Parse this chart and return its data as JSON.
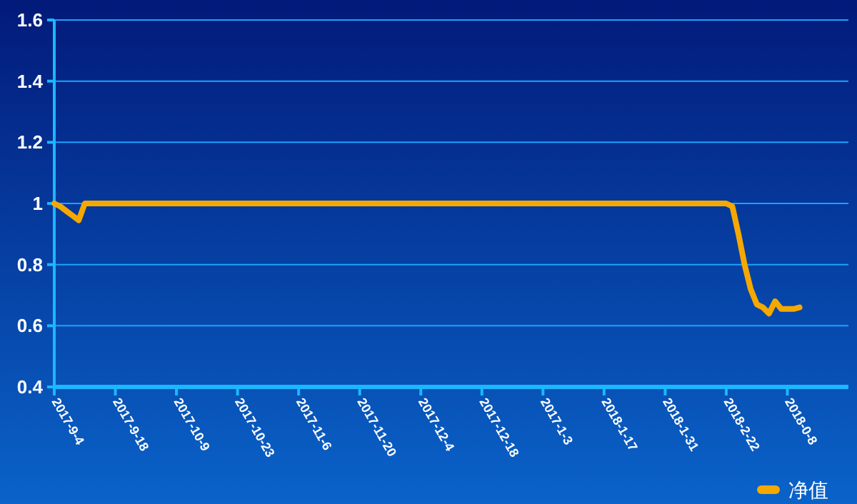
{
  "chart_data": {
    "type": "line",
    "categories": [
      "2017-9-4",
      null,
      null,
      null,
      null,
      null,
      null,
      null,
      null,
      null,
      "2017-9-18",
      null,
      null,
      null,
      null,
      null,
      null,
      null,
      null,
      null,
      "2017-10-9",
      null,
      null,
      null,
      null,
      null,
      null,
      null,
      null,
      null,
      "2017-10-23",
      null,
      null,
      null,
      null,
      null,
      null,
      null,
      null,
      null,
      "2017-11-6",
      null,
      null,
      null,
      null,
      null,
      null,
      null,
      null,
      null,
      "2017-11-20",
      null,
      null,
      null,
      null,
      null,
      null,
      null,
      null,
      null,
      "2017-12-4",
      null,
      null,
      null,
      null,
      null,
      null,
      null,
      null,
      null,
      "2017-12-18",
      null,
      null,
      null,
      null,
      null,
      null,
      null,
      null,
      null,
      "2017-1-3",
      null,
      null,
      null,
      null,
      null,
      null,
      null,
      null,
      null,
      "2018-1-17",
      null,
      null,
      null,
      null,
      null,
      null,
      null,
      null,
      null,
      "2018-1-31",
      null,
      null,
      null,
      null,
      null,
      null,
      null,
      null,
      null,
      "2018-2-22",
      null,
      null,
      null,
      null,
      null,
      null,
      null,
      null,
      null,
      "2018-0-8",
      null,
      null,
      null,
      null,
      null,
      null,
      null,
      null,
      null,
      null
    ],
    "series": [
      {
        "name": "净值",
        "color": "#f5a800",
        "values": [
          1,
          0.99,
          0.975,
          0.96,
          0.945,
          1,
          1,
          1,
          1,
          1,
          1,
          1,
          1,
          1,
          1,
          1,
          1,
          1,
          1,
          1,
          1,
          1,
          1,
          1,
          1,
          1,
          1,
          1,
          1,
          1,
          1,
          1,
          1,
          1,
          1,
          1,
          1,
          1,
          1,
          1,
          1,
          1,
          1,
          1,
          1,
          1,
          1,
          1,
          1,
          1,
          1,
          1,
          1,
          1,
          1,
          1,
          1,
          1,
          1,
          1,
          1,
          1,
          1,
          1,
          1,
          1,
          1,
          1,
          1,
          1,
          1,
          1,
          1,
          1,
          1,
          1,
          1,
          1,
          1,
          1,
          1,
          1,
          1,
          1,
          1,
          1,
          1,
          1,
          1,
          1,
          1,
          1,
          1,
          1,
          1,
          1,
          1,
          1,
          1,
          1,
          1,
          1,
          1,
          1,
          1,
          1,
          1,
          1,
          1,
          1,
          1,
          0.99,
          0.9,
          0.8,
          0.72,
          0.67,
          0.66,
          0.64,
          0.68,
          0.655,
          0.655,
          0.655,
          0.66,
          null,
          null,
          null,
          null,
          null,
          null,
          null,
          null
        ]
      }
    ],
    "ylim": [
      0.4,
      1.6
    ],
    "yticks": [
      0.4,
      0.6,
      0.8,
      1,
      1.2,
      1.4,
      1.6
    ],
    "grid": "y",
    "legend": "bottom right",
    "marker": "none",
    "line_style": "solid"
  }
}
